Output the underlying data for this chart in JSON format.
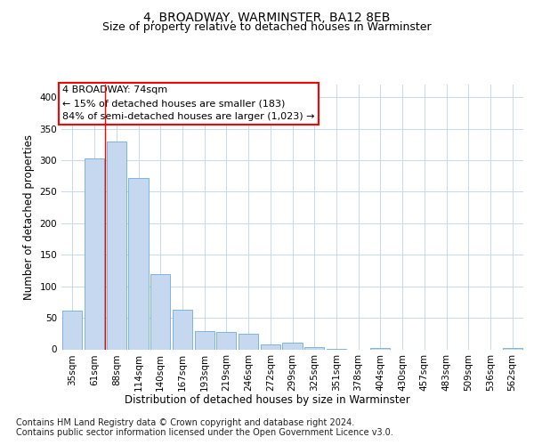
{
  "title": "4, BROADWAY, WARMINSTER, BA12 8EB",
  "subtitle": "Size of property relative to detached houses in Warminster",
  "xlabel": "Distribution of detached houses by size in Warminster",
  "ylabel": "Number of detached properties",
  "footer_line1": "Contains HM Land Registry data © Crown copyright and database right 2024.",
  "footer_line2": "Contains public sector information licensed under the Open Government Licence v3.0.",
  "annotation_line1": "4 BROADWAY: 74sqm",
  "annotation_line2": "← 15% of detached houses are smaller (183)",
  "annotation_line3": "84% of semi-detached houses are larger (1,023) →",
  "bar_labels": [
    "35sqm",
    "61sqm",
    "88sqm",
    "114sqm",
    "140sqm",
    "167sqm",
    "193sqm",
    "219sqm",
    "246sqm",
    "272sqm",
    "299sqm",
    "325sqm",
    "351sqm",
    "378sqm",
    "404sqm",
    "430sqm",
    "457sqm",
    "483sqm",
    "509sqm",
    "536sqm",
    "562sqm"
  ],
  "bar_heights": [
    62,
    303,
    330,
    272,
    120,
    63,
    29,
    27,
    25,
    8,
    10,
    4,
    1,
    0,
    2,
    0,
    0,
    0,
    0,
    0,
    2
  ],
  "bar_color": "#c5d8f0",
  "bar_edge_color": "#6baed6",
  "red_line_x": 1.5,
  "ylim": [
    0,
    420
  ],
  "yticks": [
    0,
    50,
    100,
    150,
    200,
    250,
    300,
    350,
    400
  ],
  "background_color": "#ffffff",
  "grid_color": "#c8d8e8",
  "title_fontsize": 10,
  "subtitle_fontsize": 9,
  "axis_label_fontsize": 8.5,
  "tick_fontsize": 7.5,
  "annotation_fontsize": 8,
  "footer_fontsize": 7
}
